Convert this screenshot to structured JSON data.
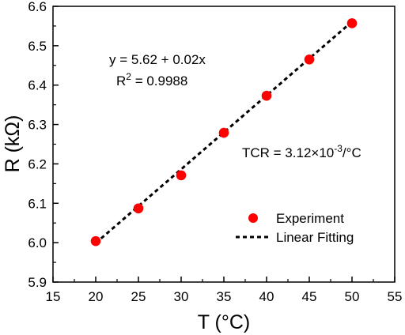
{
  "chart_data": {
    "type": "scatter",
    "xlabel": "T (°C)",
    "ylabel": "R (kΩ)",
    "xlim": [
      15,
      55
    ],
    "ylim": [
      5.9,
      6.6
    ],
    "xticks": [
      "15",
      "20",
      "25",
      "30",
      "35",
      "40",
      "45",
      "50",
      "55"
    ],
    "yticks": [
      "5.9",
      "6.0",
      "6.1",
      "6.2",
      "6.3",
      "6.4",
      "6.5",
      "6.6"
    ],
    "grid": false,
    "legend_position": "bottom-right",
    "series": [
      {
        "name": "Experiment",
        "kind": "scatter",
        "color": "#ff0000",
        "x": [
          20,
          25,
          30,
          35,
          40,
          45,
          50
        ],
        "y": [
          6.004,
          6.087,
          6.171,
          6.279,
          6.373,
          6.465,
          6.557
        ]
      },
      {
        "name": "Linear Fitting",
        "kind": "line",
        "style": "dashed",
        "color": "#000000",
        "x": [
          20,
          50
        ],
        "y": [
          5.999,
          6.561
        ]
      }
    ],
    "annotations": {
      "equation": "y = 5.62 + 0.02x",
      "r2_prefix": "R",
      "r2_sup": "2",
      "r2_value": " = 0.9988",
      "tcr_prefix": "TCR = 3.12×10",
      "tcr_sup": "-3",
      "tcr_suffix": "/°C"
    }
  }
}
